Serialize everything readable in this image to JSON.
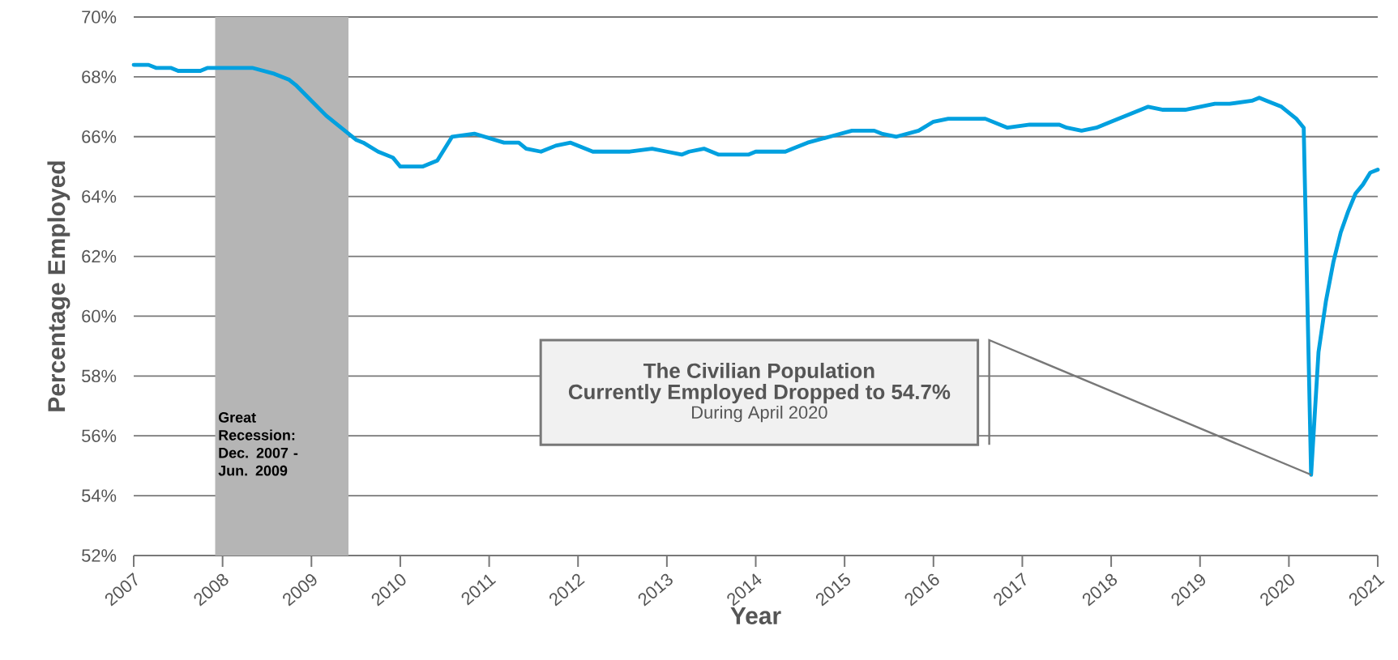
{
  "chart_data": {
    "type": "line",
    "xlabel": "Year",
    "ylabel": "Percentage Employed",
    "x": [
      "2007-01",
      "2007-03",
      "2007-04",
      "2007-06",
      "2007-07",
      "2007-10",
      "2007-11",
      "2008-05",
      "2008-08",
      "2008-10",
      "2008-11",
      "2009-01",
      "2009-03",
      "2009-05",
      "2009-07",
      "2009-08",
      "2009-10",
      "2009-12",
      "2010-01",
      "2010-03",
      "2010-04",
      "2010-06",
      "2010-08",
      "2010-11",
      "2011-03",
      "2011-05",
      "2011-06",
      "2011-08",
      "2011-10",
      "2011-12",
      "2012-03",
      "2012-08",
      "2012-11",
      "2013-01",
      "2013-03",
      "2013-04",
      "2013-06",
      "2013-08",
      "2013-12",
      "2014-01",
      "2014-05",
      "2014-06",
      "2014-08",
      "2014-11",
      "2015-02",
      "2015-05",
      "2015-06",
      "2015-08",
      "2015-11",
      "2016-01",
      "2016-03",
      "2016-06",
      "2016-08",
      "2016-11",
      "2017-02",
      "2017-06",
      "2017-07",
      "2017-09",
      "2017-11",
      "2018-01",
      "2018-03",
      "2018-05",
      "2018-06",
      "2018-08",
      "2018-11",
      "2019-01",
      "2019-03",
      "2019-05",
      "2019-08",
      "2019-09",
      "2019-10",
      "2019-12",
      "2020-02",
      "2020-03",
      "2020-04",
      "2020-05",
      "2020-06",
      "2020-07",
      "2020-08",
      "2020-09",
      "2020-10",
      "2020-11",
      "2020-12",
      "2021-01"
    ],
    "series": [
      {
        "color": "#00a0df",
        "values": [
          68.4,
          68.4,
          68.3,
          68.3,
          68.2,
          68.2,
          68.3,
          68.3,
          68.1,
          67.9,
          67.7,
          67.2,
          66.7,
          66.3,
          65.9,
          65.8,
          65.5,
          65.3,
          65.0,
          65.0,
          65.0,
          65.2,
          66.0,
          66.1,
          65.8,
          65.8,
          65.6,
          65.5,
          65.7,
          65.8,
          65.5,
          65.5,
          65.6,
          65.5,
          65.4,
          65.5,
          65.6,
          65.4,
          65.4,
          65.5,
          65.5,
          65.6,
          65.8,
          66.0,
          66.2,
          66.2,
          66.1,
          66.0,
          66.2,
          66.5,
          66.6,
          66.6,
          66.6,
          66.3,
          66.4,
          66.4,
          66.3,
          66.2,
          66.3,
          66.5,
          66.7,
          66.9,
          67.0,
          66.9,
          66.9,
          67.0,
          67.1,
          67.1,
          67.2,
          67.3,
          67.2,
          67.0,
          66.6,
          66.3,
          54.7,
          58.8,
          60.5,
          61.8,
          62.8,
          63.5,
          64.1,
          64.4,
          64.8,
          64.9
        ]
      }
    ],
    "xlim": [
      "2007",
      "2021"
    ],
    "ylim": [
      52,
      70
    ],
    "xticks": [
      "2007",
      "2008",
      "2009",
      "2010",
      "2011",
      "2012",
      "2013",
      "2014",
      "2015",
      "2016",
      "2017",
      "2018",
      "2019",
      "2020",
      "2021"
    ],
    "yticks": [
      {
        "value": 52,
        "label": "52%"
      },
      {
        "value": 54,
        "label": "54%"
      },
      {
        "value": 56,
        "label": "56%"
      },
      {
        "value": 58,
        "label": "58%"
      },
      {
        "value": 60,
        "label": "60%"
      },
      {
        "value": 62,
        "label": "62%"
      },
      {
        "value": 64,
        "label": "64%"
      },
      {
        "value": 66,
        "label": "66%"
      },
      {
        "value": 68,
        "label": "68%"
      },
      {
        "value": 70,
        "label": "70%"
      }
    ],
    "grid": "y",
    "bands": [
      {
        "axis": "x",
        "from": "2007-12",
        "to": "2009-06",
        "label": "Great Recession: Dec. 2007 - Jun. 2009",
        "color": "#b5b5b5"
      }
    ],
    "annotations": [
      "The Civilian Population",
      "Currently Employed Dropped to 54.7%",
      "During April 2020"
    ]
  }
}
